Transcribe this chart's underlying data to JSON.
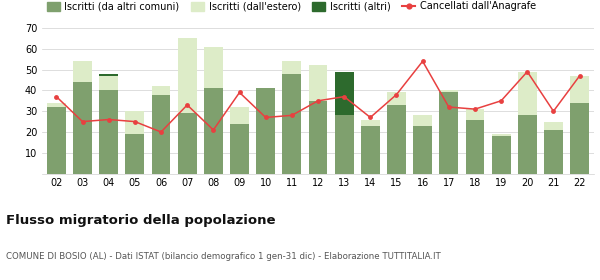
{
  "years": [
    "02",
    "03",
    "04",
    "05",
    "06",
    "07",
    "08",
    "09",
    "10",
    "11",
    "12",
    "13",
    "14",
    "15",
    "16",
    "17",
    "18",
    "19",
    "20",
    "21",
    "22"
  ],
  "iscritti_altri_comuni": [
    32,
    44,
    40,
    19,
    38,
    29,
    41,
    24,
    41,
    48,
    35,
    28,
    23,
    33,
    23,
    39,
    26,
    18,
    28,
    21,
    34
  ],
  "iscritti_estero": [
    2,
    10,
    7,
    11,
    4,
    36,
    20,
    8,
    0,
    6,
    17,
    0,
    3,
    6,
    5,
    1,
    5,
    1,
    21,
    4,
    13
  ],
  "iscritti_altri": [
    0,
    0,
    1,
    0,
    0,
    0,
    0,
    0,
    0,
    0,
    0,
    21,
    0,
    0,
    0,
    0,
    0,
    0,
    0,
    0,
    0
  ],
  "cancellati": [
    37,
    25,
    26,
    25,
    20,
    33,
    21,
    39,
    27,
    28,
    35,
    37,
    27,
    38,
    54,
    32,
    31,
    35,
    49,
    30,
    47
  ],
  "color_altri_comuni": "#7fa06e",
  "color_estero": "#ddecc8",
  "color_altri": "#2d6a2d",
  "color_cancellati": "#e84040",
  "ylim": [
    0,
    70
  ],
  "yticks": [
    0,
    10,
    20,
    30,
    40,
    50,
    60,
    70
  ],
  "title": "Flusso migratorio della popolazione",
  "subtitle": "COMUNE DI BOSIO (AL) - Dati ISTAT (bilancio demografico 1 gen-31 dic) - Elaborazione TUTTITALIA.IT",
  "legend_labels": [
    "Iscritti (da altri comuni)",
    "Iscritti (dall'estero)",
    "Iscritti (altri)",
    "Cancellati dall'Anagrafe"
  ],
  "background_color": "#ffffff",
  "grid_color": "#d0d0d0"
}
